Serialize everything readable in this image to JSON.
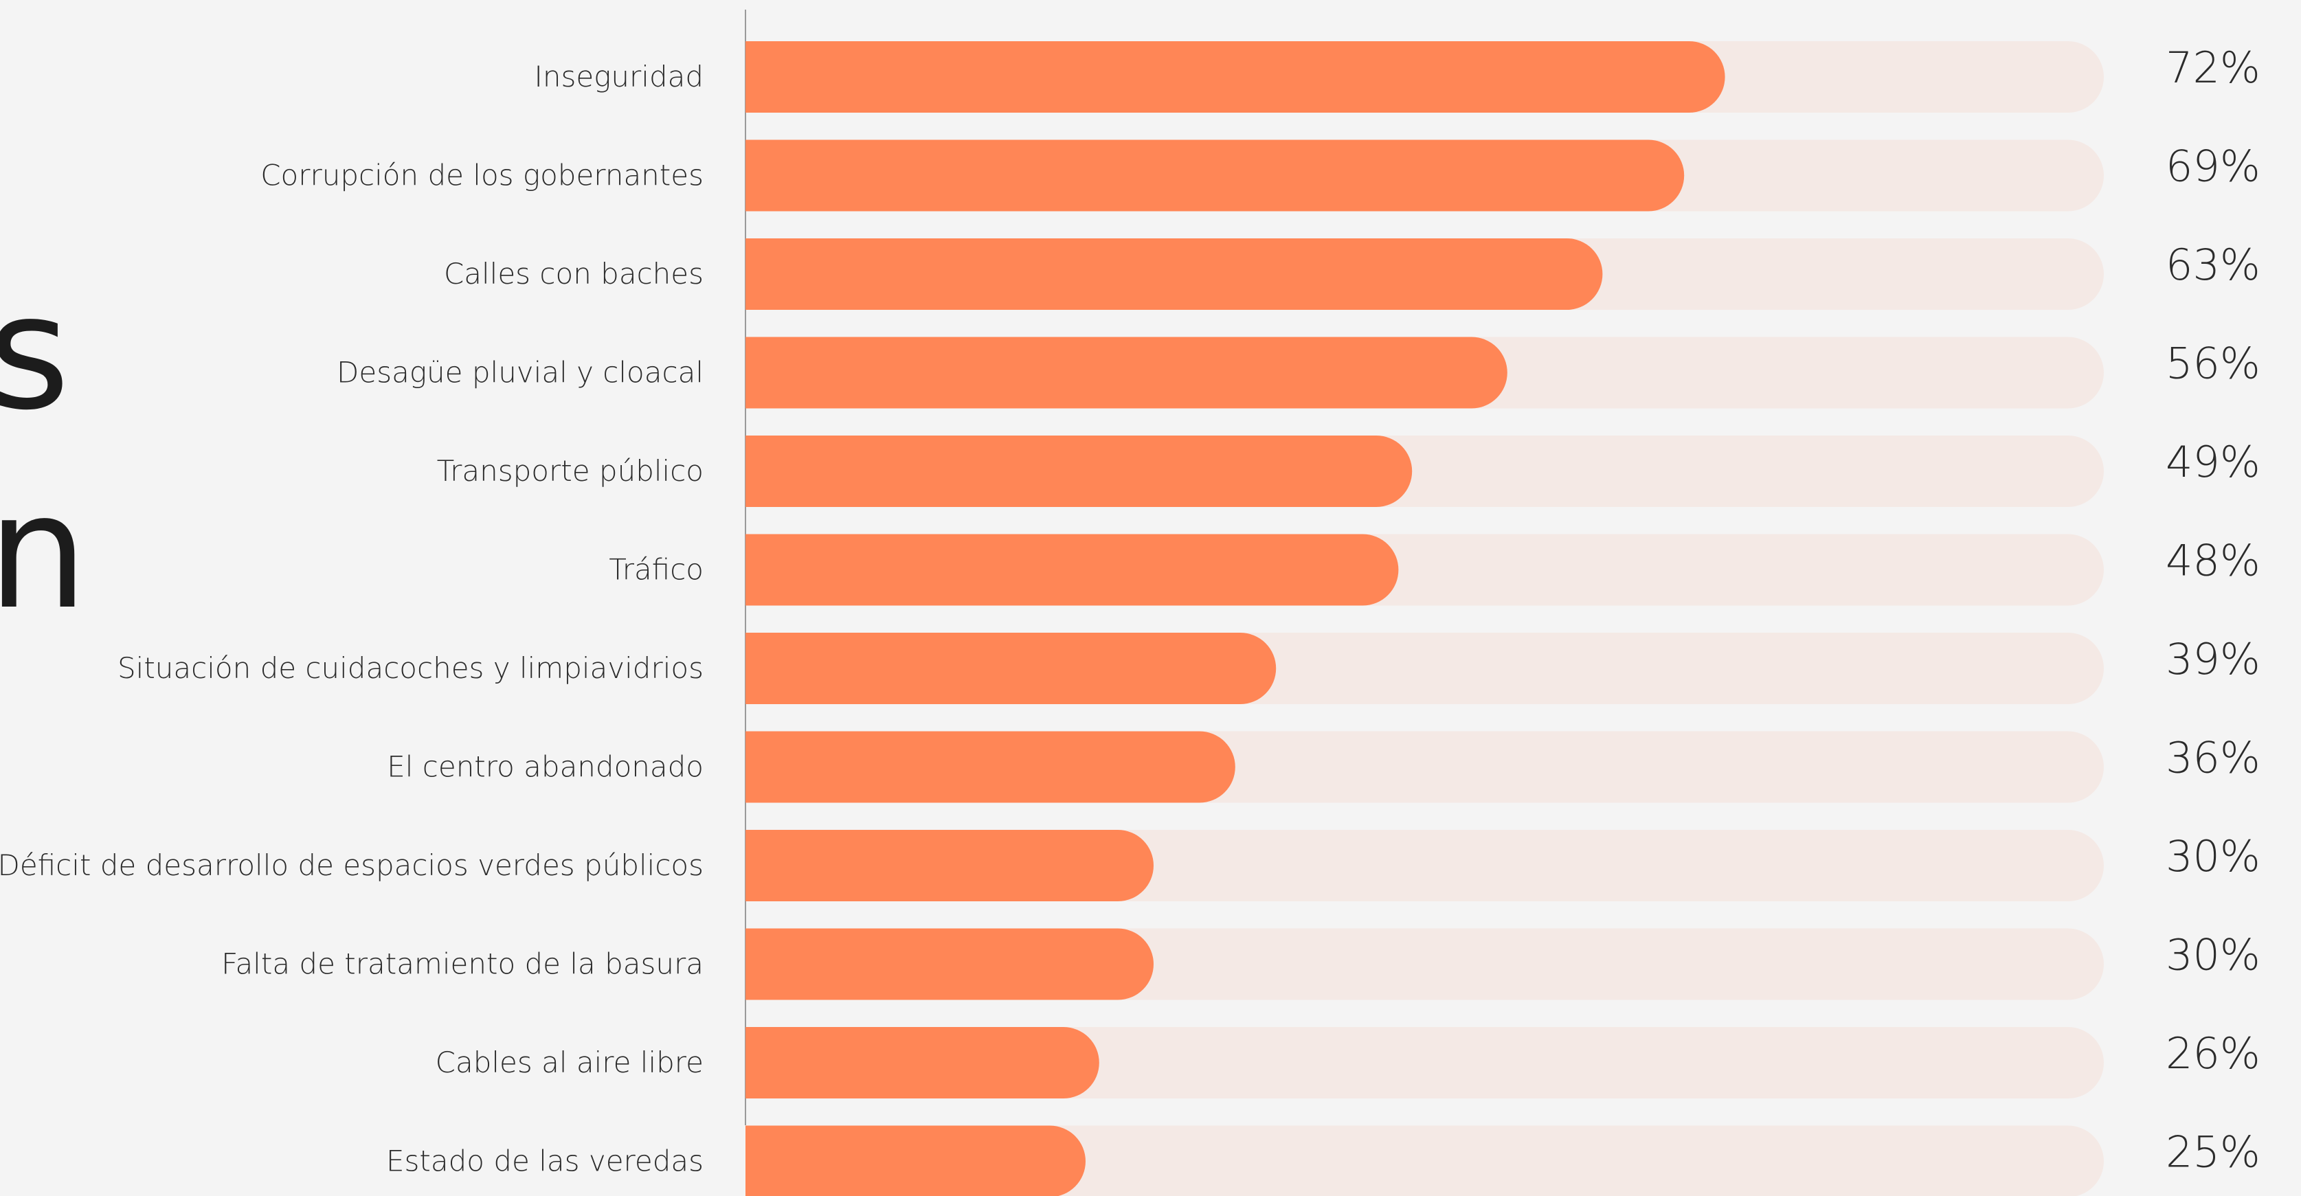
{
  "heading_fragment": [
    "s",
    "n"
  ],
  "colors": {
    "bar": "#ff8656",
    "track": "#f4e9e5",
    "axis": "#9a9a9a",
    "text": "#2b2b2b"
  },
  "chart_data": {
    "type": "bar",
    "orientation": "horizontal",
    "xlim": [
      0,
      100
    ],
    "categories": [
      "Inseguridad",
      "Corrupción de los gobernantes",
      "Calles con baches",
      "Desagüe pluvial y cloacal",
      "Transporte público",
      "Tráfico",
      "Situación de cuidacoches y limpiavidrios",
      "El centro abandonado",
      "Déficit de desarrollo de espacios verdes públicos",
      "Falta de tratamiento de la basura",
      "Cables al aire libre",
      "Estado de las veredas"
    ],
    "values": [
      72,
      69,
      63,
      56,
      49,
      48,
      39,
      36,
      30,
      30,
      26,
      25
    ],
    "value_labels": [
      "72%",
      "69%",
      "63%",
      "56%",
      "49%",
      "48%",
      "39%",
      "36%",
      "30%",
      "30%",
      "26%",
      "25%"
    ]
  }
}
